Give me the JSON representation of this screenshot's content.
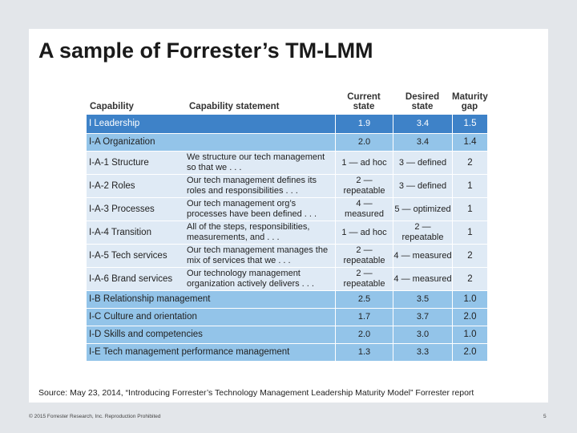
{
  "title": "A sample of Forrester’s TM-LMM",
  "table": {
    "headers": {
      "capability": "Capability",
      "statement": "Capability statement",
      "current_line1": "Current",
      "current_line2": "state",
      "desired_line1": "Desired",
      "desired_line2": "state",
      "gap_line1": "Maturity",
      "gap_line2": "gap"
    },
    "rows": [
      {
        "capability": "I Leadership",
        "statement": "",
        "current": "1.9",
        "desired": "3.4",
        "gap": "1.5"
      },
      {
        "capability": "I-A Organization",
        "statement": "",
        "current": "2.0",
        "desired": "3.4",
        "gap": "1.4"
      },
      {
        "capability": "I-A-1 Structure",
        "statement": "We structure our tech management so that we . . .",
        "current": "1 — ad hoc",
        "desired": "3 — defined",
        "gap": "2"
      },
      {
        "capability": "I-A-2 Roles",
        "statement": "Our tech management defines its roles and responsibilities . . .",
        "current": "2 — repeatable",
        "desired": "3 — defined",
        "gap": "1"
      },
      {
        "capability": "I-A-3 Processes",
        "statement": "Our tech management org’s processes have been defined . . .",
        "current": "4 — measured",
        "desired": "5 — optimized",
        "gap": "1"
      },
      {
        "capability": "I-A-4 Transition",
        "statement": "All of the steps, responsibilities, measurements, and . . .",
        "current": "1 — ad hoc",
        "desired": "2 — repeatable",
        "gap": "1"
      },
      {
        "capability": "I-A-5 Tech services",
        "statement": "Our tech management manages the mix of services that we . . .",
        "current": "2 — repeatable",
        "desired": "4 — measured",
        "gap": "2"
      },
      {
        "capability": "I-A-6 Brand services",
        "statement": "Our technology management organization actively delivers . . .",
        "current": "2 — repeatable",
        "desired": "4 — measured",
        "gap": "2"
      },
      {
        "capability": "I-B Relationship management",
        "statement": "",
        "current": "2.5",
        "desired": "3.5",
        "gap": "1.0"
      },
      {
        "capability": "I-C Culture and orientation",
        "statement": "",
        "current": "1.7",
        "desired": "3.7",
        "gap": "2.0"
      },
      {
        "capability": "I-D Skills and competencies",
        "statement": "",
        "current": "2.0",
        "desired": "3.0",
        "gap": "1.0"
      },
      {
        "capability": "I-E Tech management performance management",
        "statement": "",
        "current": "1.3",
        "desired": "3.3",
        "gap": "2.0"
      }
    ]
  },
  "source": "Source: May 23, 2014, “Introducing Forrester’s Technology Management Leadership Maturity Model” Forrester report",
  "footer": {
    "copyright": "© 2015 Forrester Research, Inc. Reproduction Prohibited",
    "page_number": "5"
  },
  "colors": {
    "leadership_row": "#3e82c8",
    "category_row": "#93c4e9",
    "subcapability_row": "#dfeaf5"
  }
}
